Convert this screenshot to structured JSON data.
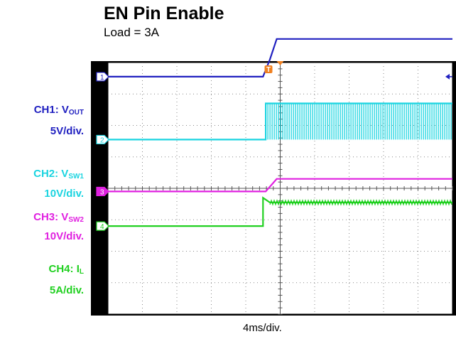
{
  "title": "EN Pin Enable",
  "subtitle": "Load = 3A",
  "time_div": "4ms/div.",
  "colors": {
    "ch1": "#2020c0",
    "ch2": "#1ad4e0",
    "ch3": "#e020e0",
    "ch4": "#20d020",
    "trigger": "#f08020"
  },
  "channels": [
    {
      "name": "CH1: V",
      "sub": "OUT",
      "scale": "5V/div."
    },
    {
      "name": "CH2: V",
      "sub": "SW1",
      "scale": "10V/div."
    },
    {
      "name": "CH3: V",
      "sub": "SW2",
      "scale": "10V/div."
    },
    {
      "name": "CH4: I",
      "sub": "L",
      "scale": "5A/div."
    }
  ],
  "chart_data": {
    "type": "line",
    "title": "EN Pin Enable",
    "subtitle": "Load = 3A",
    "xlabel": "4ms/div.",
    "grid": true,
    "x_divisions": 10,
    "y_divisions": 8,
    "trigger_marker": "T",
    "series": [
      {
        "name": "CH1: VOUT",
        "marker": "1",
        "unit_per_div": "5V/div.",
        "x_div": [
          0,
          4.5,
          4.7,
          4.9,
          10
        ],
        "y_div": [
          3.55,
          3.55,
          4.1,
          4.75,
          4.75
        ]
      },
      {
        "name": "CH2: VSW1",
        "marker": "2",
        "unit_per_div": "10V/div.",
        "x_div": [
          0,
          4.58,
          4.58,
          10
        ],
        "y_div": [
          1.55,
          1.55,
          2.7,
          2.7
        ],
        "switching_after_div": 4.58
      },
      {
        "name": "CH3: VSW2",
        "marker": "3",
        "unit_per_div": "10V/div.",
        "x_div": [
          0,
          4.58,
          4.9,
          10
        ],
        "y_div": [
          -0.1,
          -0.1,
          0.3,
          0.3
        ]
      },
      {
        "name": "CH4: IL",
        "marker": "4",
        "unit_per_div": "5A/div.",
        "x_div": [
          0,
          4.5,
          4.5,
          4.7,
          10
        ],
        "y_div": [
          -1.2,
          -1.2,
          -0.3,
          -0.45,
          -0.45
        ]
      }
    ]
  }
}
